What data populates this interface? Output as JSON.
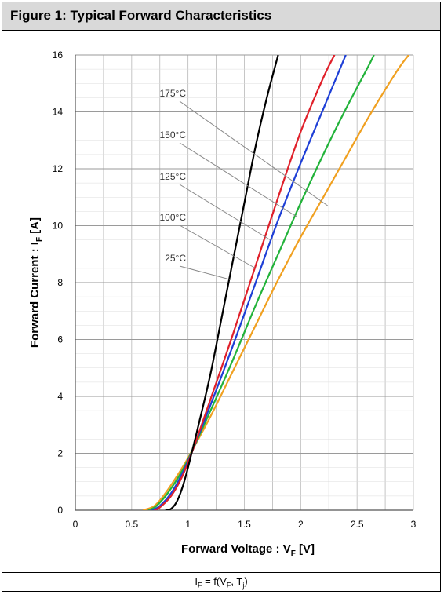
{
  "figure": {
    "title": "Figure 1: Typical Forward Characteristics",
    "caption": {
      "lhs": "I",
      "lhs_sub": "F",
      "mid": " = f(V",
      "mid_sub": "F",
      "sep": ", T",
      "tail_sub": "j",
      "end": ")"
    }
  },
  "chart_data": {
    "type": "line",
    "title": "Figure 1: Typical Forward Characteristics",
    "xlabel": "Forward Voltage : V",
    "xlabel_sub": "F",
    "xlabel_unit": " [V]",
    "ylabel": "Forward Current : I",
    "ylabel_sub": "F",
    "ylabel_unit": " [A]",
    "xlim": [
      0,
      3
    ],
    "ylim": [
      0,
      16
    ],
    "xticks": [
      0,
      0.5,
      1,
      1.5,
      2,
      2.5,
      3
    ],
    "xtick_labels": [
      "0",
      "0.5",
      "1",
      "1.5",
      "2",
      "2.5",
      "3"
    ],
    "yticks": [
      0,
      2,
      4,
      6,
      8,
      10,
      12,
      14,
      16
    ],
    "ytick_labels": [
      "0",
      "2",
      "4",
      "6",
      "8",
      "10",
      "12",
      "14",
      "16"
    ],
    "grid": true,
    "series": [
      {
        "name": "25°C",
        "color": "#000000",
        "points": [
          [
            0.8,
            0
          ],
          [
            0.85,
            0.05
          ],
          [
            0.9,
            0.3
          ],
          [
            0.95,
            0.8
          ],
          [
            1.0,
            1.5
          ],
          [
            1.1,
            3.1
          ],
          [
            1.2,
            4.8
          ],
          [
            1.3,
            6.8
          ],
          [
            1.4,
            8.8
          ],
          [
            1.5,
            10.8
          ],
          [
            1.6,
            12.8
          ],
          [
            1.7,
            14.5
          ],
          [
            1.8,
            16.0
          ]
        ],
        "label_anchor": [
          1.38,
          8.1
        ]
      },
      {
        "name": "100°C",
        "color": "#e0202a",
        "points": [
          [
            0.7,
            0
          ],
          [
            0.75,
            0.1
          ],
          [
            0.85,
            0.5
          ],
          [
            0.95,
            1.2
          ],
          [
            1.05,
            2.2
          ],
          [
            1.2,
            3.9
          ],
          [
            1.4,
            6.2
          ],
          [
            1.6,
            8.6
          ],
          [
            1.8,
            11.0
          ],
          [
            2.0,
            13.3
          ],
          [
            2.2,
            15.2
          ],
          [
            2.3,
            16.0
          ]
        ],
        "label_anchor": [
          1.6,
          8.5
        ]
      },
      {
        "name": "125°C",
        "color": "#1e3fd6",
        "points": [
          [
            0.68,
            0
          ],
          [
            0.75,
            0.15
          ],
          [
            0.85,
            0.6
          ],
          [
            0.95,
            1.3
          ],
          [
            1.05,
            2.2
          ],
          [
            1.2,
            3.7
          ],
          [
            1.4,
            5.8
          ],
          [
            1.6,
            8.0
          ],
          [
            1.8,
            10.2
          ],
          [
            2.0,
            12.2
          ],
          [
            2.2,
            14.1
          ],
          [
            2.4,
            16.0
          ]
        ],
        "label_anchor": [
          1.73,
          9.5
        ]
      },
      {
        "name": "150°C",
        "color": "#22b33a",
        "points": [
          [
            0.65,
            0
          ],
          [
            0.72,
            0.15
          ],
          [
            0.82,
            0.6
          ],
          [
            0.95,
            1.4
          ],
          [
            1.05,
            2.2
          ],
          [
            1.2,
            3.5
          ],
          [
            1.4,
            5.3
          ],
          [
            1.6,
            7.2
          ],
          [
            1.8,
            9.0
          ],
          [
            2.0,
            10.8
          ],
          [
            2.2,
            12.5
          ],
          [
            2.4,
            14.1
          ],
          [
            2.6,
            15.6
          ],
          [
            2.65,
            16.0
          ]
        ],
        "label_anchor": [
          1.97,
          10.3
        ]
      },
      {
        "name": "175°C",
        "color": "#f0a020",
        "points": [
          [
            0.6,
            0
          ],
          [
            0.7,
            0.15
          ],
          [
            0.8,
            0.6
          ],
          [
            0.95,
            1.5
          ],
          [
            1.05,
            2.2
          ],
          [
            1.2,
            3.3
          ],
          [
            1.4,
            4.9
          ],
          [
            1.6,
            6.5
          ],
          [
            1.8,
            8.1
          ],
          [
            2.0,
            9.6
          ],
          [
            2.2,
            11.0
          ],
          [
            2.4,
            12.4
          ],
          [
            2.6,
            13.8
          ],
          [
            2.8,
            15.1
          ],
          [
            2.9,
            15.7
          ],
          [
            3.0,
            16.2
          ]
        ],
        "label_anchor": [
          2.24,
          10.7
        ]
      }
    ]
  }
}
